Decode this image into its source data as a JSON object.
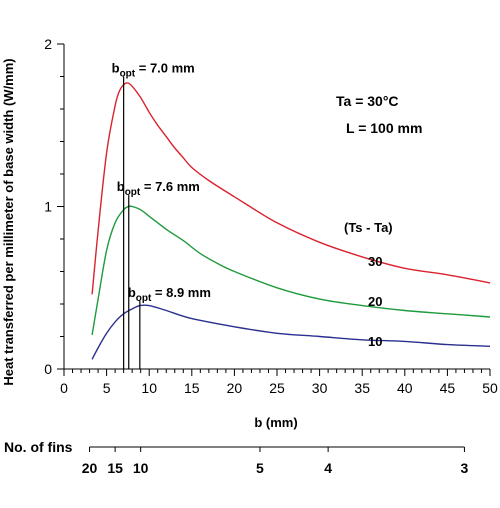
{
  "chart_data": {
    "type": "line",
    "xlabel": "b (mm)",
    "ylabel": "Heat transferred per millimeter of base width  (W/mm)",
    "xlim": [
      0,
      50
    ],
    "ylim": [
      0,
      2
    ],
    "x_ticks": [
      0,
      5,
      10,
      15,
      20,
      25,
      30,
      35,
      40,
      45,
      50
    ],
    "x_minor_step": 1,
    "y_ticks": [
      0,
      1,
      2
    ],
    "y_minor_step": 0.2,
    "grid": false,
    "legend_title": "(Ts - Ta)",
    "annotations": {
      "ta": "Ta  =  30°C",
      "l": "L  =  100 mm"
    },
    "series": [
      {
        "name": "30",
        "color": "#d9232e",
        "x": [
          3.3,
          4,
          5,
          6,
          6.5,
          7,
          7.5,
          8,
          9,
          10,
          11,
          12,
          13,
          14,
          15,
          17,
          20,
          25,
          30,
          35,
          40,
          45,
          50
        ],
        "y": [
          0.46,
          0.85,
          1.33,
          1.62,
          1.71,
          1.75,
          1.76,
          1.74,
          1.67,
          1.58,
          1.5,
          1.43,
          1.36,
          1.3,
          1.24,
          1.16,
          1.06,
          0.9,
          0.78,
          0.69,
          0.62,
          0.58,
          0.53
        ]
      },
      {
        "name": "20",
        "color": "#1f9a3c",
        "x": [
          3.3,
          4,
          5,
          6,
          7,
          7.6,
          8,
          9,
          10,
          12,
          14,
          16,
          18,
          20,
          25,
          30,
          35,
          40,
          45,
          50
        ],
        "y": [
          0.21,
          0.43,
          0.73,
          0.9,
          0.98,
          1.0,
          1.0,
          0.98,
          0.94,
          0.86,
          0.79,
          0.71,
          0.65,
          0.6,
          0.5,
          0.43,
          0.39,
          0.36,
          0.34,
          0.32
        ]
      },
      {
        "name": "10",
        "color": "#2b2f8f",
        "x": [
          3.3,
          4,
          5,
          6,
          7,
          8,
          8.9,
          10,
          12,
          15,
          20,
          25,
          30,
          35,
          40,
          45,
          50
        ],
        "y": [
          0.06,
          0.13,
          0.22,
          0.29,
          0.34,
          0.37,
          0.39,
          0.39,
          0.36,
          0.31,
          0.26,
          0.22,
          0.2,
          0.18,
          0.17,
          0.15,
          0.14
        ]
      }
    ],
    "optima": [
      {
        "sub": "opt",
        "value_text": " = 7.0 mm",
        "x": 7.0,
        "y_top": 1.8
      },
      {
        "sub": "opt",
        "value_text": " = 7.6 mm",
        "x": 7.6,
        "y_top": 1.07
      },
      {
        "sub": "opt",
        "value_text": " = 8.9 mm",
        "x": 8.9,
        "y_top": 0.42
      }
    ],
    "fins_axis": {
      "label": "No. of fins",
      "ticks": [
        {
          "label": "20",
          "b": 3
        },
        {
          "label": "15",
          "b": 6
        },
        {
          "label": "10",
          "b": 9
        }
      ],
      "ticks_right": [
        {
          "label": "5",
          "b": 23
        },
        {
          "label": "4",
          "b": 31
        },
        {
          "label": "3",
          "b": 47
        }
      ]
    }
  }
}
